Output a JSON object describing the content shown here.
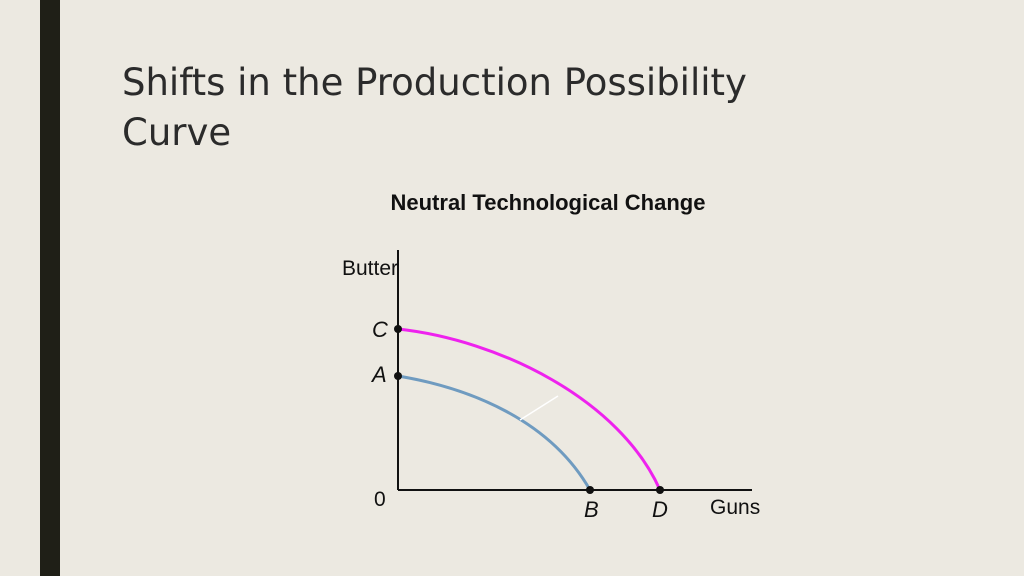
{
  "slide": {
    "title_line1": "Shifts in the Production Possibility",
    "title_line2": "Curve",
    "accent_color": "#1f1f17",
    "background_color": "#ece9e1"
  },
  "diagram": {
    "subtitle": "Neutral Technological Change",
    "y_axis_label": "Butter",
    "x_axis_label": "Guns",
    "origin_label": "0",
    "points": {
      "c": "C",
      "a": "A",
      "b": "B",
      "d": "D"
    },
    "curves": {
      "original": {
        "from": "A",
        "to": "B",
        "color": "#6f9bc0"
      },
      "shifted": {
        "from": "C",
        "to": "D",
        "color": "#ee22ee"
      }
    },
    "shift_arrow_color": "#ffffff"
  }
}
